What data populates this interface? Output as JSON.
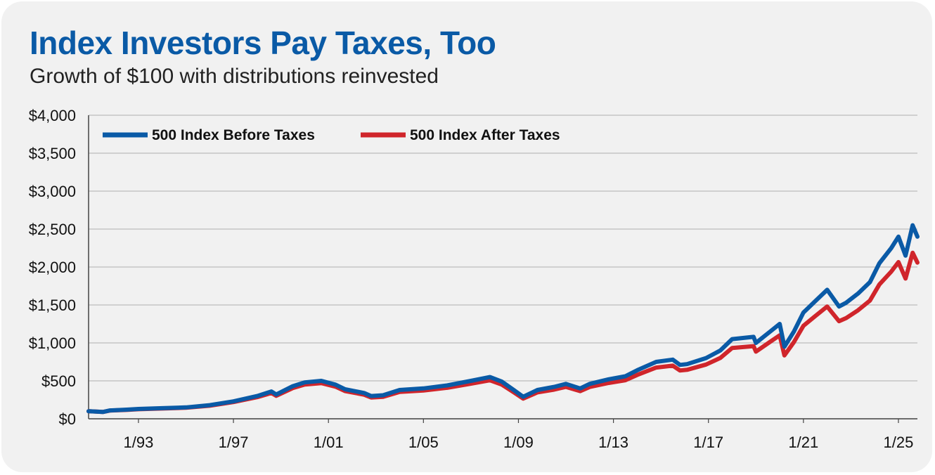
{
  "title": "Index Investors Pay Taxes, Too",
  "subtitle": "Growth of $100 with distributions reinvested",
  "colors": {
    "before": "#0a5aa6",
    "after": "#d0252b",
    "title": "#0a5aa6",
    "grid": "#bdbdbd",
    "background": "#f1f1f1"
  },
  "chart_data": {
    "type": "line",
    "title": "Index Investors Pay Taxes, Too",
    "subtitle": "Growth of $100 with distributions reinvested",
    "xlabel": "",
    "ylabel": "",
    "xlim": [
      1990.9,
      2025.8
    ],
    "ylim": [
      0,
      4000
    ],
    "grid": true,
    "legend_position": "top-left",
    "y_ticks": [
      0,
      500,
      1000,
      1500,
      2000,
      2500,
      3000,
      3500,
      4000
    ],
    "y_tick_labels": [
      "$0",
      "$500",
      "$1,000",
      "$1,500",
      "$2,000",
      "$2,500",
      "$3,000",
      "$3,500",
      "$4,000"
    ],
    "x_ticks": [
      1993,
      1997,
      2001,
      2005,
      2009,
      2013,
      2017,
      2021,
      2025
    ],
    "x_tick_labels": [
      "1/93",
      "1/97",
      "1/01",
      "1/05",
      "1/09",
      "1/13",
      "1/17",
      "1/21",
      "1/25"
    ],
    "series": [
      {
        "name": "500 Index Before Taxes",
        "color": "#0a5aa6",
        "points": [
          [
            1990.9,
            100
          ],
          [
            1991.5,
            90
          ],
          [
            1991.8,
            110
          ],
          [
            1992.5,
            120
          ],
          [
            1993.0,
            130
          ],
          [
            1994.0,
            140
          ],
          [
            1995.0,
            150
          ],
          [
            1996.0,
            180
          ],
          [
            1997.0,
            230
          ],
          [
            1998.0,
            300
          ],
          [
            1998.6,
            360
          ],
          [
            1998.8,
            320
          ],
          [
            1999.5,
            430
          ],
          [
            2000.0,
            480
          ],
          [
            2000.7,
            500
          ],
          [
            2001.3,
            450
          ],
          [
            2001.7,
            390
          ],
          [
            2002.5,
            340
          ],
          [
            2002.8,
            300
          ],
          [
            2003.3,
            310
          ],
          [
            2004.0,
            380
          ],
          [
            2005.0,
            400
          ],
          [
            2006.0,
            440
          ],
          [
            2007.0,
            500
          ],
          [
            2007.8,
            550
          ],
          [
            2008.3,
            490
          ],
          [
            2008.8,
            380
          ],
          [
            2009.2,
            290
          ],
          [
            2009.8,
            380
          ],
          [
            2010.5,
            420
          ],
          [
            2011.0,
            460
          ],
          [
            2011.6,
            400
          ],
          [
            2012.0,
            460
          ],
          [
            2012.8,
            520
          ],
          [
            2013.5,
            560
          ],
          [
            2014.0,
            640
          ],
          [
            2014.8,
            750
          ],
          [
            2015.5,
            780
          ],
          [
            2015.8,
            710
          ],
          [
            2016.1,
            720
          ],
          [
            2016.9,
            800
          ],
          [
            2017.5,
            900
          ],
          [
            2018.0,
            1050
          ],
          [
            2018.9,
            1080
          ],
          [
            2019.0,
            1000
          ],
          [
            2019.6,
            1150
          ],
          [
            2020.0,
            1250
          ],
          [
            2020.2,
            950
          ],
          [
            2020.6,
            1150
          ],
          [
            2021.0,
            1400
          ],
          [
            2021.5,
            1550
          ],
          [
            2022.0,
            1700
          ],
          [
            2022.5,
            1480
          ],
          [
            2022.8,
            1530
          ],
          [
            2023.3,
            1650
          ],
          [
            2023.8,
            1800
          ],
          [
            2024.2,
            2050
          ],
          [
            2024.7,
            2250
          ],
          [
            2025.0,
            2400
          ],
          [
            2025.3,
            2150
          ],
          [
            2025.6,
            2550
          ],
          [
            2025.8,
            2400
          ]
        ]
      },
      {
        "name": "500 Index After Taxes",
        "color": "#d0252b",
        "points": [
          [
            1990.9,
            100
          ],
          [
            1991.5,
            90
          ],
          [
            1991.8,
            108
          ],
          [
            1992.5,
            117
          ],
          [
            1993.0,
            126
          ],
          [
            1994.0,
            135
          ],
          [
            1995.0,
            145
          ],
          [
            1996.0,
            172
          ],
          [
            1997.0,
            220
          ],
          [
            1998.0,
            285
          ],
          [
            1998.6,
            340
          ],
          [
            1998.8,
            303
          ],
          [
            1999.5,
            405
          ],
          [
            2000.0,
            452
          ],
          [
            2000.7,
            470
          ],
          [
            2001.3,
            423
          ],
          [
            2001.7,
            366
          ],
          [
            2002.5,
            318
          ],
          [
            2002.8,
            281
          ],
          [
            2003.3,
            290
          ],
          [
            2004.0,
            355
          ],
          [
            2005.0,
            372
          ],
          [
            2006.0,
            408
          ],
          [
            2007.0,
            462
          ],
          [
            2007.8,
            507
          ],
          [
            2008.3,
            451
          ],
          [
            2008.8,
            350
          ],
          [
            2009.2,
            266
          ],
          [
            2009.8,
            348
          ],
          [
            2010.5,
            384
          ],
          [
            2011.0,
            420
          ],
          [
            2011.6,
            365
          ],
          [
            2012.0,
            419
          ],
          [
            2012.8,
            472
          ],
          [
            2013.5,
            507
          ],
          [
            2014.0,
            578
          ],
          [
            2014.8,
            675
          ],
          [
            2015.5,
            700
          ],
          [
            2015.8,
            637
          ],
          [
            2016.1,
            645
          ],
          [
            2016.9,
            715
          ],
          [
            2017.5,
            802
          ],
          [
            2018.0,
            933
          ],
          [
            2018.9,
            957
          ],
          [
            2019.0,
            885
          ],
          [
            2019.6,
            1015
          ],
          [
            2020.0,
            1100
          ],
          [
            2020.2,
            835
          ],
          [
            2020.6,
            1010
          ],
          [
            2021.0,
            1225
          ],
          [
            2021.5,
            1354
          ],
          [
            2022.0,
            1480
          ],
          [
            2022.5,
            1286
          ],
          [
            2022.8,
            1328
          ],
          [
            2023.3,
            1430
          ],
          [
            2023.8,
            1557
          ],
          [
            2024.2,
            1770
          ],
          [
            2024.7,
            1940
          ],
          [
            2025.0,
            2065
          ],
          [
            2025.3,
            1848
          ],
          [
            2025.6,
            2188
          ],
          [
            2025.8,
            2058
          ]
        ]
      }
    ]
  }
}
